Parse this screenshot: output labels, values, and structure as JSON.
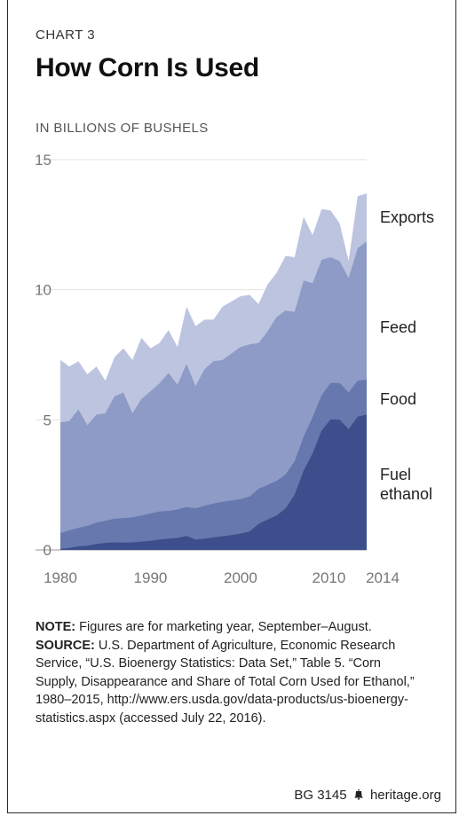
{
  "header": {
    "kicker": "CHART 3",
    "title": "How Corn Is Used",
    "units": "IN BILLIONS OF BUSHELS"
  },
  "colors": {
    "fuel_ethanol": "#3c4f8c",
    "food": "#6678ad",
    "feed": "#8d9bc6",
    "exports": "#bcc4e0",
    "grid": "#e2e2e2",
    "tick": "#777777"
  },
  "chart_data": {
    "type": "area",
    "stacked": true,
    "title": "How Corn Is Used",
    "ylabel": "IN BILLIONS OF BUSHELS",
    "xlabel": "",
    "x": [
      1980,
      1981,
      1982,
      1983,
      1984,
      1985,
      1986,
      1987,
      1988,
      1989,
      1990,
      1991,
      1992,
      1993,
      1994,
      1995,
      1996,
      1997,
      1998,
      1999,
      2000,
      2001,
      2002,
      2003,
      2004,
      2005,
      2006,
      2007,
      2008,
      2009,
      2010,
      2011,
      2012,
      2013,
      2014
    ],
    "xlim": [
      1980,
      2014
    ],
    "ylim": [
      0,
      15
    ],
    "x_ticks": [
      1980,
      1990,
      2000,
      2010,
      2014
    ],
    "y_ticks": [
      0,
      5,
      10,
      15
    ],
    "grid": true,
    "series": [
      {
        "name": "Fuel ethanol",
        "cumulative": [
          0.04,
          0.08,
          0.14,
          0.16,
          0.23,
          0.27,
          0.29,
          0.28,
          0.29,
          0.32,
          0.35,
          0.4,
          0.43,
          0.46,
          0.54,
          0.4,
          0.43,
          0.48,
          0.53,
          0.57,
          0.63,
          0.71,
          1.0,
          1.17,
          1.32,
          1.6,
          2.12,
          3.05,
          3.71,
          4.59,
          5.02,
          5.0,
          4.64,
          5.12,
          5.2
        ]
      },
      {
        "name": "Food",
        "cumulative": [
          0.65,
          0.75,
          0.85,
          0.92,
          1.05,
          1.12,
          1.2,
          1.22,
          1.25,
          1.32,
          1.4,
          1.48,
          1.5,
          1.55,
          1.65,
          1.6,
          1.7,
          1.78,
          1.85,
          1.9,
          1.95,
          2.05,
          2.35,
          2.5,
          2.65,
          2.9,
          3.4,
          4.35,
          5.1,
          5.95,
          6.42,
          6.42,
          6.05,
          6.5,
          6.55
        ]
      },
      {
        "name": "Feed",
        "cumulative": [
          4.9,
          4.95,
          5.4,
          4.8,
          5.2,
          5.25,
          5.9,
          6.05,
          5.25,
          5.8,
          6.1,
          6.4,
          6.8,
          6.35,
          7.15,
          6.3,
          6.95,
          7.25,
          7.3,
          7.55,
          7.8,
          7.9,
          7.95,
          8.4,
          8.95,
          9.2,
          9.15,
          10.35,
          10.25,
          11.15,
          11.25,
          11.1,
          10.45,
          11.6,
          11.85
        ]
      },
      {
        "name": "Exports",
        "cumulative": [
          7.3,
          7.05,
          7.25,
          6.75,
          7.05,
          6.5,
          7.4,
          7.75,
          7.3,
          8.15,
          7.75,
          7.95,
          8.45,
          7.8,
          9.35,
          8.6,
          8.85,
          8.85,
          9.35,
          9.55,
          9.75,
          9.8,
          9.45,
          10.2,
          10.65,
          11.3,
          11.25,
          12.8,
          12.1,
          13.1,
          13.05,
          12.55,
          11.1,
          13.6,
          13.7
        ]
      }
    ],
    "labels": [
      "Exports",
      "Feed",
      "Food",
      "Fuel",
      "ethanol"
    ]
  },
  "note": {
    "note_label": "NOTE:",
    "note_text": " Figures are for marketing year, September–August.",
    "source_label": "SOURCE:",
    "source_text": " U.S. Department of Agriculture, Economic Research Service, “U.S. Bioenergy Statistics: Data Set,” Table 5. “Corn Supply, Disappearance and Share of Total Corn Used for Ethanol,” 1980–2015, http://www.ers.usda.gov/data-products/us-bioenergy-statistics.aspx (accessed July 22, 2016)."
  },
  "footer": {
    "report_id": "BG 3145",
    "site": "heritage.org",
    "bell_icon": "liberty-bell-icon"
  }
}
